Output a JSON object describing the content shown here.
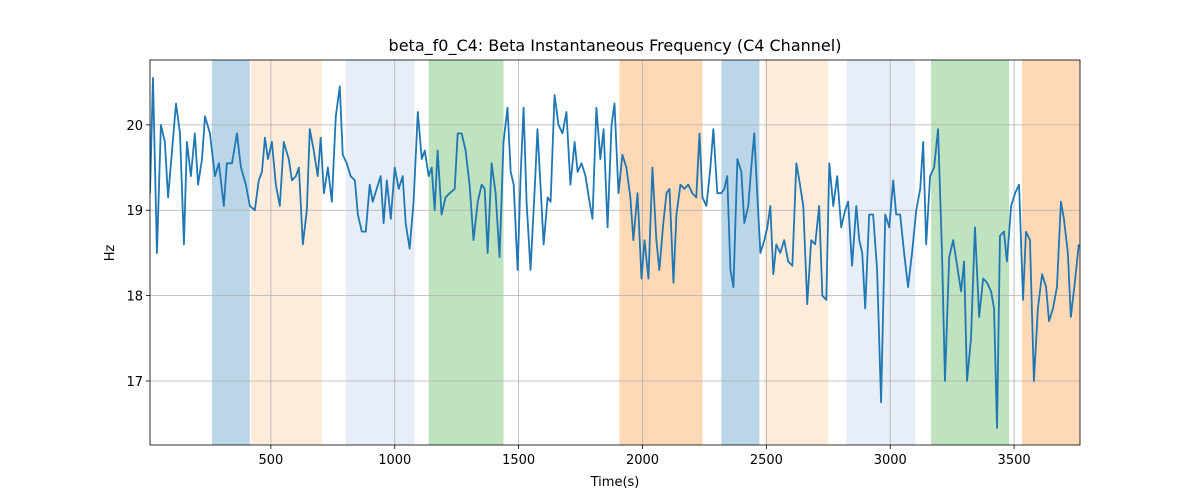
{
  "chart_data": {
    "type": "line",
    "title": "beta_f0_C4: Beta Instantaneous Frequency (C4 Channel)",
    "x_label": "Time(s)",
    "y_label": "Hz",
    "xlim": [
      12,
      3766
    ],
    "ylim": [
      16.25,
      20.76
    ],
    "xticks": [
      500,
      1000,
      1500,
      2000,
      2500,
      3000,
      3500
    ],
    "yticks": [
      17,
      18,
      19,
      20
    ],
    "grid": true,
    "spans": [
      {
        "x0": 262,
        "x1": 415,
        "color": "rgba(31,119,180,0.3)"
      },
      {
        "x0": 419,
        "x1": 706,
        "color": "rgba(255,127,14,0.15)"
      },
      {
        "x0": 802,
        "x1": 1080,
        "color": "rgba(174,199,232,0.3)"
      },
      {
        "x0": 1137,
        "x1": 1439,
        "color": "rgba(44,160,44,0.3)"
      },
      {
        "x0": 1907,
        "x1": 2242,
        "color": "rgba(255,127,14,0.3)"
      },
      {
        "x0": 2318,
        "x1": 2472,
        "color": "rgba(31,119,180,0.3)"
      },
      {
        "x0": 2492,
        "x1": 2750,
        "color": "rgba(255,127,14,0.15)"
      },
      {
        "x0": 2823,
        "x1": 3101,
        "color": "rgba(174,199,232,0.3)"
      },
      {
        "x0": 3165,
        "x1": 3480,
        "color": "rgba(44,160,44,0.3)"
      },
      {
        "x0": 3532,
        "x1": 3766,
        "color": "rgba(255,127,14,0.3)"
      }
    ],
    "x": [
      12,
      24,
      40,
      56,
      72,
      85,
      101,
      117,
      133,
      149,
      161,
      177,
      193,
      206,
      222,
      234,
      254,
      274,
      290,
      310,
      322,
      343,
      363,
      379,
      399,
      415,
      435,
      451,
      464,
      476,
      488,
      504,
      520,
      536,
      552,
      572,
      585,
      601,
      613,
      629,
      645,
      657,
      673,
      689,
      701,
      714,
      730,
      746,
      762,
      778,
      790,
      806,
      822,
      839,
      851,
      867,
      883,
      899,
      911,
      927,
      943,
      955,
      968,
      984,
      1000,
      1016,
      1032,
      1044,
      1060,
      1076,
      1093,
      1109,
      1121,
      1137,
      1149,
      1161,
      1173,
      1189,
      1205,
      1222,
      1242,
      1254,
      1270,
      1286,
      1302,
      1318,
      1335,
      1351,
      1363,
      1375,
      1391,
      1407,
      1423,
      1439,
      1455,
      1468,
      1480,
      1496,
      1508,
      1520,
      1532,
      1548,
      1564,
      1576,
      1589,
      1601,
      1617,
      1629,
      1645,
      1661,
      1677,
      1693,
      1709,
      1726,
      1738,
      1754,
      1770,
      1786,
      1798,
      1814,
      1830,
      1843,
      1859,
      1875,
      1887,
      1903,
      1919,
      1935,
      1951,
      1963,
      1980,
      1996,
      2008,
      2024,
      2040,
      2056,
      2068,
      2084,
      2097,
      2109,
      2125,
      2137,
      2153,
      2169,
      2185,
      2201,
      2217,
      2230,
      2242,
      2258,
      2274,
      2286,
      2302,
      2318,
      2330,
      2342,
      2355,
      2367,
      2383,
      2399,
      2411,
      2427,
      2439,
      2451,
      2463,
      2476,
      2492,
      2504,
      2516,
      2528,
      2540,
      2556,
      2572,
      2588,
      2605,
      2621,
      2633,
      2649,
      2665,
      2681,
      2697,
      2713,
      2726,
      2742,
      2754,
      2770,
      2786,
      2802,
      2818,
      2830,
      2846,
      2863,
      2875,
      2887,
      2899,
      2915,
      2931,
      2947,
      2963,
      2980,
      2996,
      3012,
      3024,
      3040,
      3056,
      3072,
      3088,
      3105,
      3121,
      3133,
      3145,
      3161,
      3177,
      3193,
      3209,
      3221,
      3238,
      3254,
      3270,
      3286,
      3298,
      3310,
      3326,
      3342,
      3359,
      3375,
      3391,
      3407,
      3419,
      3431,
      3443,
      3459,
      3471,
      3488,
      3504,
      3520,
      3536,
      3548,
      3564,
      3580,
      3596,
      3613,
      3629,
      3641,
      3657,
      3673,
      3689,
      3701,
      3717,
      3729,
      3745,
      3761
    ],
    "series": [
      {
        "name": "beta_f0_C4",
        "color": "#1f77b4",
        "values": [
          19.2,
          20.55,
          18.5,
          20.0,
          19.8,
          19.15,
          19.7,
          20.25,
          19.9,
          18.6,
          19.8,
          19.4,
          19.9,
          19.3,
          19.6,
          20.1,
          19.9,
          19.4,
          19.55,
          19.05,
          19.55,
          19.55,
          19.9,
          19.5,
          19.3,
          19.05,
          19.0,
          19.35,
          19.45,
          19.85,
          19.6,
          19.8,
          19.3,
          19.05,
          19.8,
          19.6,
          19.35,
          19.4,
          19.5,
          18.6,
          19.0,
          19.95,
          19.7,
          19.4,
          19.85,
          19.2,
          19.5,
          19.1,
          20.1,
          20.45,
          19.65,
          19.55,
          19.4,
          19.35,
          18.95,
          18.75,
          18.75,
          19.3,
          19.1,
          19.25,
          19.4,
          18.85,
          19.35,
          18.9,
          19.5,
          19.25,
          19.4,
          18.85,
          18.55,
          19.1,
          20.15,
          19.6,
          19.7,
          19.4,
          19.5,
          19.0,
          19.7,
          18.95,
          19.15,
          19.2,
          19.25,
          19.9,
          19.9,
          19.7,
          19.3,
          18.65,
          19.1,
          19.3,
          19.25,
          18.5,
          19.55,
          19.2,
          18.45,
          19.8,
          20.2,
          19.45,
          19.3,
          18.3,
          19.4,
          20.2,
          19.1,
          18.3,
          19.2,
          19.95,
          19.25,
          18.6,
          19.15,
          19.1,
          20.35,
          20.0,
          19.9,
          20.15,
          19.3,
          19.8,
          19.45,
          19.55,
          19.4,
          19.1,
          18.9,
          20.2,
          19.6,
          19.95,
          18.8,
          20.0,
          20.25,
          19.2,
          19.65,
          19.5,
          19.15,
          18.65,
          19.2,
          18.2,
          18.65,
          18.2,
          19.5,
          18.65,
          18.3,
          18.85,
          19.2,
          19.25,
          18.15,
          18.95,
          19.3,
          19.25,
          19.3,
          19.2,
          19.15,
          19.9,
          19.15,
          19.05,
          19.5,
          19.95,
          19.2,
          19.2,
          19.25,
          19.4,
          18.3,
          18.1,
          19.6,
          19.45,
          18.85,
          19.05,
          19.5,
          19.9,
          19.2,
          18.5,
          18.65,
          18.8,
          19.05,
          18.25,
          18.6,
          18.5,
          18.65,
          18.4,
          18.35,
          19.55,
          19.35,
          19.05,
          17.9,
          18.65,
          18.6,
          19.05,
          18.0,
          17.95,
          19.55,
          19.05,
          19.4,
          18.8,
          19.0,
          19.1,
          18.35,
          19.05,
          18.65,
          18.5,
          17.85,
          18.95,
          18.95,
          18.3,
          16.75,
          18.95,
          18.8,
          19.35,
          18.95,
          18.95,
          18.5,
          18.1,
          18.5,
          19.0,
          19.25,
          19.8,
          18.6,
          19.4,
          19.5,
          19.95,
          18.5,
          17.0,
          18.45,
          18.65,
          18.35,
          18.05,
          18.4,
          17.0,
          17.5,
          18.8,
          17.75,
          18.2,
          18.15,
          18.05,
          17.85,
          16.45,
          18.7,
          18.75,
          18.4,
          19.05,
          19.2,
          19.3,
          17.95,
          18.75,
          18.65,
          17.0,
          17.85,
          18.25,
          18.1,
          17.7,
          17.85,
          18.1,
          19.1,
          18.9,
          18.5,
          17.75,
          18.15,
          18.6
        ]
      }
    ]
  }
}
